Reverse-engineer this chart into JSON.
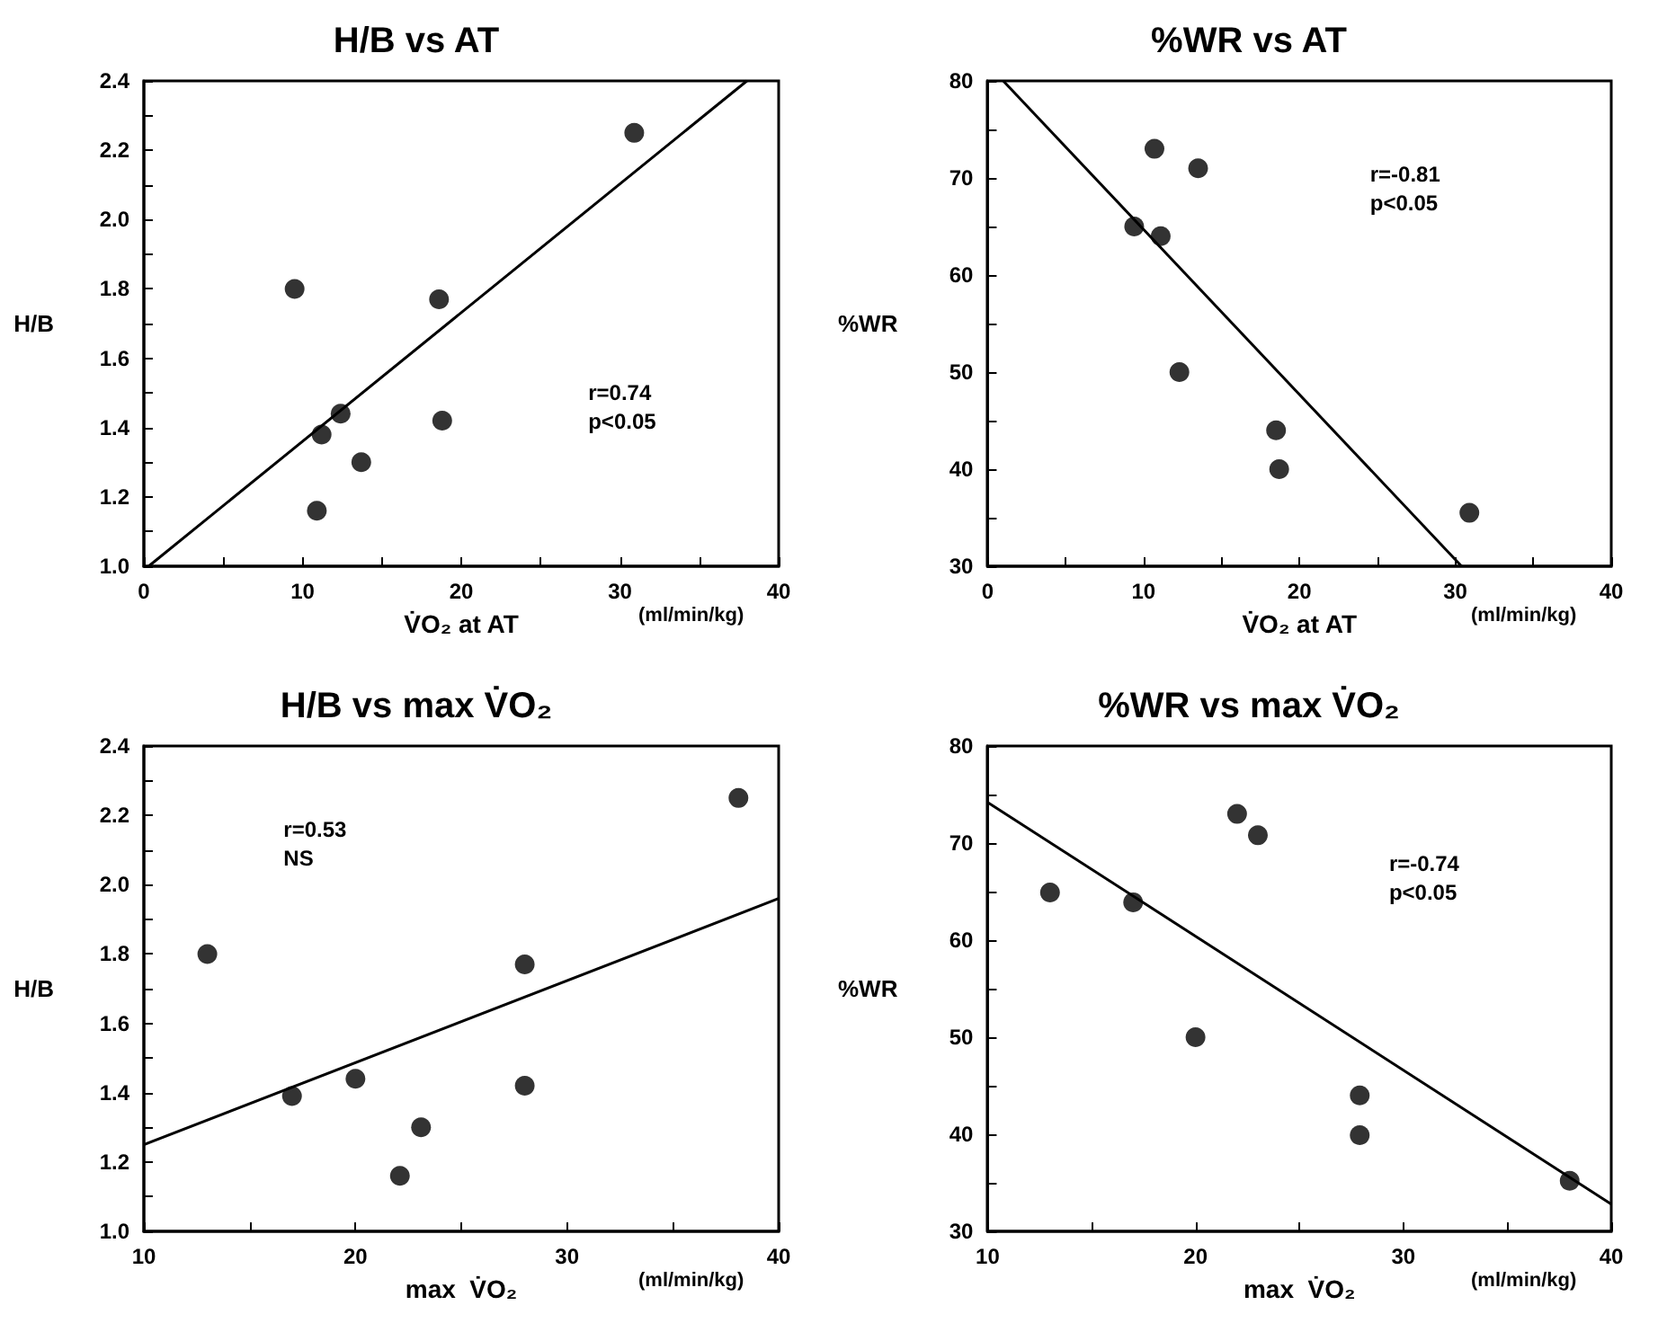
{
  "chart_data": [
    {
      "type": "scatter",
      "title": "H/B vs AT",
      "xlabel": "V̇O₂ at AT",
      "ylabel": "H/B",
      "annotations": [
        "(ml/min/kg)",
        "r=0.74",
        "p<0.05"
      ],
      "marker": "circle",
      "grid": false,
      "xlim": [
        0,
        40
      ],
      "ylim": [
        1.0,
        2.4
      ],
      "xticks": [
        0,
        {
          "value": 5,
          "label": null
        },
        10,
        {
          "value": 15,
          "label": null
        },
        20,
        {
          "value": 25,
          "label": null
        },
        30,
        {
          "value": 35,
          "label": null
        },
        40
      ],
      "yticks": [
        {
          "value": 1,
          "label": "1.0"
        },
        {
          "value": 1.1,
          "label": null
        },
        1.2,
        {
          "value": 1.3,
          "label": null
        },
        1.4,
        {
          "value": 1.5,
          "label": null
        },
        1.6,
        {
          "value": 1.7,
          "label": null
        },
        1.8,
        {
          "value": 1.9,
          "label": null
        },
        {
          "value": 2,
          "label": "2.0"
        },
        {
          "value": 2.1,
          "label": null
        },
        2.2,
        {
          "value": 2.3,
          "label": null
        },
        2.4
      ],
      "series": [
        {
          "color": "#000000",
          "x": [
            9.5,
            30.9,
            18.6,
            12.4,
            11.2,
            18.8,
            13.7,
            10.9
          ],
          "values": [
            1.8,
            2.25,
            1.77,
            1.44,
            1.38,
            1.42,
            1.3,
            1.16
          ]
        },
        {
          "type": "line",
          "color": "#000000",
          "marker": "none",
          "line_style": "solid",
          "x": [
            0.3,
            38
          ],
          "values": [
            1.0,
            2.4
          ]
        }
      ]
    },
    {
      "type": "scatter",
      "title": "%WR vs AT",
      "xlabel": "V̇O₂ at AT",
      "ylabel": "%WR",
      "annotations": [
        "(ml/min/kg)",
        "r=-0.81",
        "p<0.05"
      ],
      "marker": "circle",
      "grid": false,
      "xlim": [
        0,
        40
      ],
      "ylim": [
        30,
        80
      ],
      "xticks": [
        0,
        {
          "value": 5,
          "label": null
        },
        10,
        {
          "value": 15,
          "label": null
        },
        20,
        {
          "value": 25,
          "label": null
        },
        30,
        {
          "value": 35,
          "label": null
        },
        40
      ],
      "yticks": [
        30,
        {
          "value": 35,
          "label": null
        },
        40,
        {
          "value": 45,
          "label": null
        },
        50,
        {
          "value": 55,
          "label": null
        },
        60,
        {
          "value": 65,
          "label": null
        },
        70,
        {
          "value": 75,
          "label": null
        },
        80
      ],
      "series": [
        {
          "color": "#000000",
          "x": [
            10.7,
            13.5,
            9.4,
            11.1,
            12.3,
            18.5,
            18.7,
            30.9
          ],
          "values": [
            73,
            71,
            65,
            64,
            50,
            44,
            40,
            35.5
          ]
        },
        {
          "type": "line",
          "color": "#000000",
          "marker": "none",
          "line_style": "solid",
          "x": [
            1.0,
            30.4
          ],
          "values": [
            80,
            30
          ]
        }
      ]
    },
    {
      "type": "scatter",
      "title": "H/B vs max V̇O₂",
      "xlabel": "max  V̇O₂",
      "ylabel": "H/B",
      "annotations": [
        "(ml/min/kg)",
        "r=0.53",
        "NS"
      ],
      "marker": "circle",
      "grid": false,
      "xlim": [
        10,
        40
      ],
      "ylim": [
        1.0,
        2.4
      ],
      "xticks": [
        10,
        {
          "value": 15,
          "label": null
        },
        20,
        {
          "value": 25,
          "label": null
        },
        30,
        {
          "value": 35,
          "label": null
        },
        40
      ],
      "yticks": [
        {
          "value": 1,
          "label": "1.0"
        },
        {
          "value": 1.1,
          "label": null
        },
        1.2,
        {
          "value": 1.3,
          "label": null
        },
        1.4,
        {
          "value": 1.5,
          "label": null
        },
        1.6,
        {
          "value": 1.7,
          "label": null
        },
        1.8,
        {
          "value": 1.9,
          "label": null
        },
        {
          "value": 2,
          "label": "2.0"
        },
        {
          "value": 2.1,
          "label": null
        },
        2.2,
        {
          "value": 2.3,
          "label": null
        },
        2.4
      ],
      "series": [
        {
          "color": "#000000",
          "x": [
            13,
            38.1,
            28,
            17,
            20,
            28,
            23.1,
            22.1
          ],
          "values": [
            1.8,
            2.25,
            1.77,
            1.39,
            1.44,
            1.42,
            1.3,
            1.16
          ]
        },
        {
          "type": "line",
          "color": "#000000",
          "marker": "none",
          "line_style": "solid",
          "x": [
            10,
            40
          ],
          "values": [
            1.25,
            1.96
          ]
        }
      ]
    },
    {
      "type": "scatter",
      "title": "%WR vs max V̇O₂",
      "xlabel": "max  V̇O₂",
      "ylabel": "%WR",
      "annotations": [
        "(ml/min/kg)",
        "r=-0.74",
        "p<0.05"
      ],
      "marker": "circle",
      "grid": false,
      "xlim": [
        10,
        40
      ],
      "ylim": [
        30,
        80
      ],
      "xticks": [
        10,
        {
          "value": 15,
          "label": null
        },
        20,
        {
          "value": 25,
          "label": null
        },
        30,
        {
          "value": 35,
          "label": null
        },
        40
      ],
      "yticks": [
        30,
        {
          "value": 35,
          "label": null
        },
        40,
        {
          "value": 45,
          "label": null
        },
        50,
        {
          "value": 55,
          "label": null
        },
        60,
        {
          "value": 65,
          "label": null
        },
        70,
        {
          "value": 75,
          "label": null
        },
        80
      ],
      "series": [
        {
          "color": "#000000",
          "x": [
            13,
            22,
            23,
            17,
            20,
            27.9,
            27.9,
            38
          ],
          "values": [
            64.9,
            73,
            70.8,
            63.9,
            50,
            44,
            39.9,
            35.2
          ]
        },
        {
          "type": "line",
          "color": "#000000",
          "marker": "none",
          "line_style": "solid",
          "x": [
            10,
            40
          ],
          "values": [
            74.2,
            32.8
          ]
        }
      ]
    }
  ]
}
